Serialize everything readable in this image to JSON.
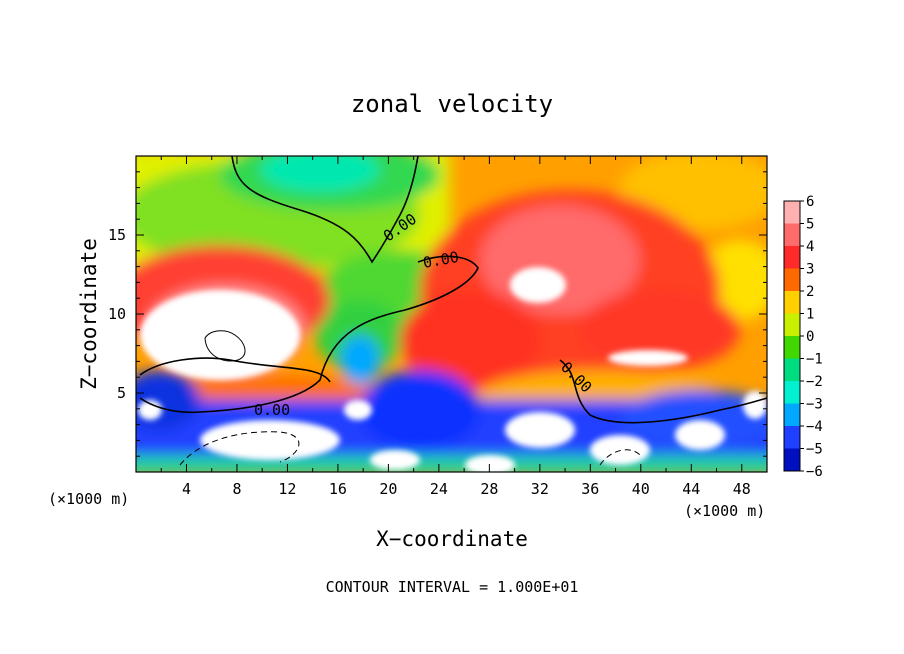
{
  "chart_data": {
    "type": "heatmap",
    "title": "zonal velocity",
    "xlabel": "X−coordinate",
    "ylabel": "Z−coordinate",
    "x_unit_left": "(×1000 m)",
    "x_unit_right": "(×1000 m)",
    "xlim": [
      0,
      50
    ],
    "ylim": [
      0,
      20
    ],
    "x_ticks": [
      4,
      8,
      12,
      16,
      20,
      24,
      28,
      32,
      36,
      40,
      44,
      48
    ],
    "y_ticks": [
      5,
      10,
      15
    ],
    "colorbar": {
      "levels": [
        6,
        5,
        4,
        3,
        2,
        1,
        0,
        -1,
        -2,
        -3,
        -4,
        -5,
        -6
      ],
      "colors": [
        "#ffb0b0",
        "#ff6a6a",
        "#ff2a2a",
        "#ff6a00",
        "#ffd000",
        "#c8f000",
        "#40d800",
        "#00dc80",
        "#00f0d0",
        "#00a8ff",
        "#2040ff",
        "#0010c0",
        "#6000b0"
      ]
    },
    "contour_labels": [
      "0.00",
      "0.00",
      "0.00",
      "0.00"
    ],
    "footnote": "CONTOUR INTERVAL = 1.000E+01"
  }
}
